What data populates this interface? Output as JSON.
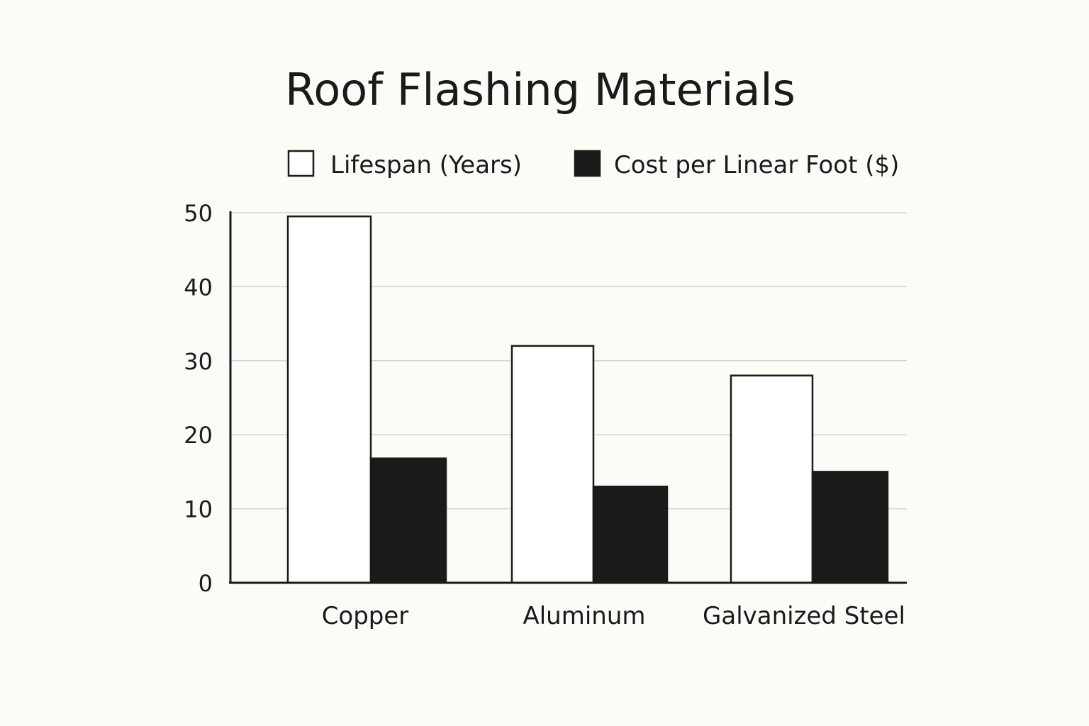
{
  "chart_data": {
    "type": "bar",
    "title": "Roof Flashing Materials",
    "categories": [
      "Copper",
      "Aluminum",
      "Galvanized Steel"
    ],
    "series": [
      {
        "name": "Lifespan (Years)",
        "values": [
          49.5,
          32,
          28
        ],
        "fill": "#ffffff",
        "stroke": "#1a1a1a"
      },
      {
        "name": "Cost per Linear Foot ($)",
        "values": [
          16.8,
          13,
          15
        ],
        "fill": "#1a1a1a",
        "stroke": "#1a1a1a"
      }
    ],
    "yticks": [
      0,
      10,
      20,
      30,
      40,
      50
    ],
    "ylim": [
      0,
      50
    ],
    "xlabel": "",
    "ylabel": "",
    "grid": true,
    "legend_position": "top-center"
  }
}
